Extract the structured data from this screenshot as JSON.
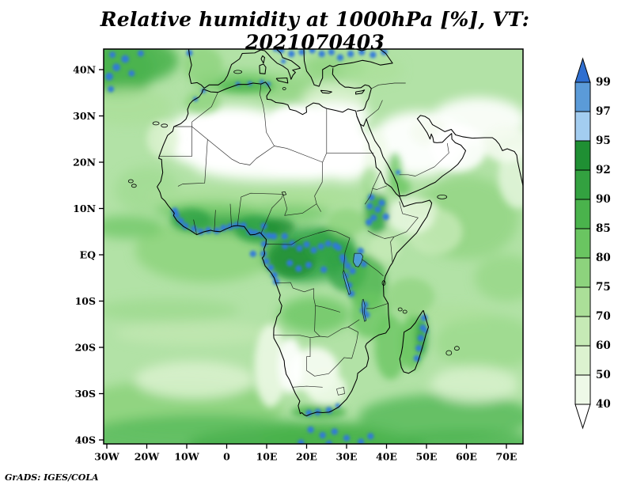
{
  "title": "Relative humidity at 1000hPa [%], VT: 2021070403",
  "credit": "GrADS: IGES/COLA",
  "chart_data": {
    "type": "heatmap",
    "variable": "Relative humidity",
    "level": "1000hPa",
    "units": "%",
    "valid_time": "2021070403",
    "title": "Relative humidity at 1000hPa [%], VT: 2021070403",
    "projection": "latlon",
    "x_ticks": [
      "30W",
      "20W",
      "10W",
      "0",
      "10E",
      "20E",
      "30E",
      "40E",
      "50E",
      "60E",
      "70E"
    ],
    "x_tick_longitudes": [
      -30,
      -20,
      -10,
      0,
      10,
      20,
      30,
      40,
      50,
      60,
      70
    ],
    "y_ticks": [
      "40N",
      "30N",
      "20N",
      "10N",
      "EQ",
      "10S",
      "20S",
      "30S",
      "40S"
    ],
    "y_tick_latitudes": [
      40,
      30,
      20,
      10,
      0,
      -10,
      -20,
      -30,
      -40
    ],
    "colorbar": {
      "orientation": "vertical",
      "position": "right",
      "labels_top_to_bottom": [
        "99",
        "97",
        "95",
        "92",
        "90",
        "85",
        "80",
        "75",
        "70",
        "60",
        "50",
        "40"
      ],
      "colors_bottom_to_top": [
        "#ffffff",
        "#eef9e8",
        "#dcf2d0",
        "#c6eab6",
        "#abdf98",
        "#8dd37d",
        "#6ac561",
        "#4ab34c",
        "#33a140",
        "#1f8f33",
        "#a3cdf0",
        "#5b9bd8",
        "#2f6fd0"
      ]
    },
    "field_summary": {
      "dry_regions_lt_40": [
        "Sahara interior",
        "Arabian peninsula interior",
        "Kalahari/Namib"
      ],
      "very_humid_gt_95": [
        "Guinea coast",
        "Congo basin",
        "Ethiopian highlands",
        "East African lakes",
        "eastern Madagascar",
        "South African south coast",
        "NE Atlantic storm track"
      ]
    }
  }
}
